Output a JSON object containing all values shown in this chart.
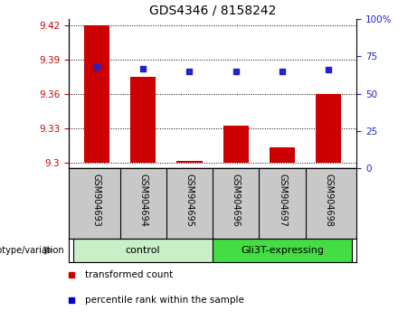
{
  "title": "GDS4346 / 8158242",
  "samples": [
    "GSM904693",
    "GSM904694",
    "GSM904695",
    "GSM904696",
    "GSM904697",
    "GSM904698"
  ],
  "red_values": [
    9.42,
    9.375,
    9.301,
    9.332,
    9.313,
    9.36
  ],
  "blue_values_pct": [
    68,
    67,
    65,
    65,
    65,
    66
  ],
  "ylim_left": [
    9.295,
    9.425
  ],
  "ylim_right": [
    0,
    100
  ],
  "yticks_left": [
    9.3,
    9.33,
    9.36,
    9.39,
    9.42
  ],
  "yticks_right": [
    0,
    25,
    50,
    75,
    100
  ],
  "ytick_labels_right": [
    "0",
    "25",
    "50",
    "75",
    "100%"
  ],
  "bar_base": 9.3,
  "groups": [
    {
      "label": "control",
      "start": 0,
      "end": 3,
      "color": "#c8f0c8"
    },
    {
      "label": "Gli3T-expressing",
      "start": 3,
      "end": 6,
      "color": "#44dd44"
    }
  ],
  "group_label": "genotype/variation",
  "legend_items": [
    {
      "label": "transformed count",
      "color": "#cc0000"
    },
    {
      "label": "percentile rank within the sample",
      "color": "#0000cc"
    }
  ],
  "red_color": "#cc0000",
  "blue_color": "#2222cc",
  "bg_xtick": "#c8c8c8",
  "bar_width": 0.55,
  "figsize": [
    4.61,
    3.54
  ],
  "dpi": 100
}
